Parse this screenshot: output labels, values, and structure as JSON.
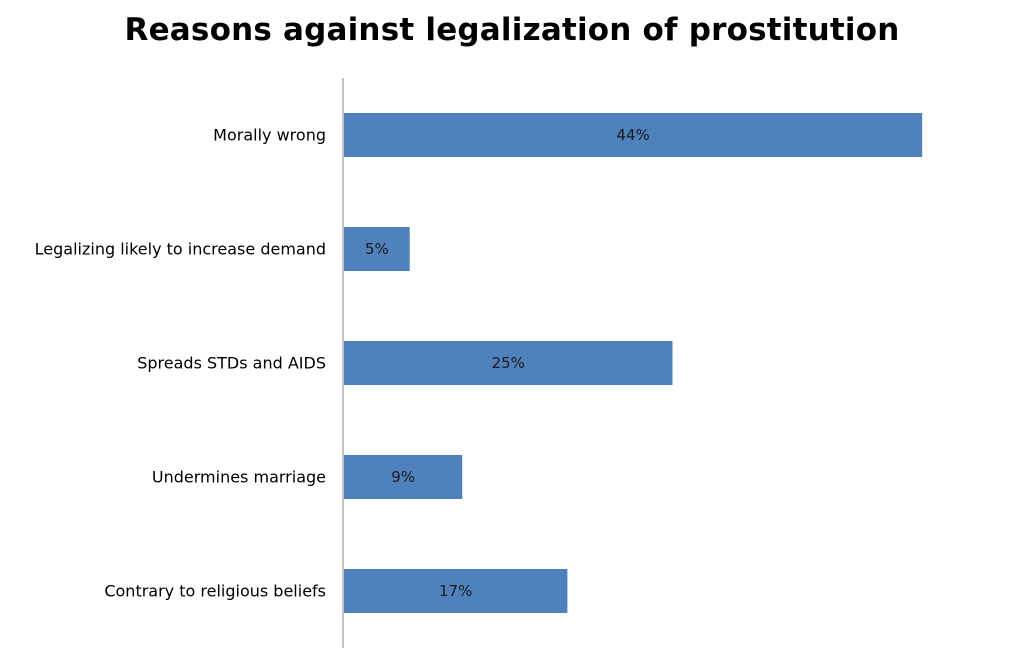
{
  "chart_data": {
    "type": "bar",
    "orientation": "horizontal",
    "title": "Reasons against legalization of prostitution",
    "categories": [
      "Morally wrong",
      "Legalizing likely to increase demand",
      "Spreads STDs and AIDS",
      "Undermines marriage",
      "Contrary to religious beliefs"
    ],
    "values": [
      44,
      5,
      25,
      9,
      17
    ],
    "value_labels": [
      "44%",
      "5%",
      "25%",
      "9%",
      "17%"
    ],
    "unit": "%",
    "xlim": [
      0,
      50
    ],
    "xlabel": "",
    "ylabel": "",
    "grid": false,
    "legend": "none",
    "bar_color": "#4F81BD",
    "axis_color": "#868686"
  }
}
